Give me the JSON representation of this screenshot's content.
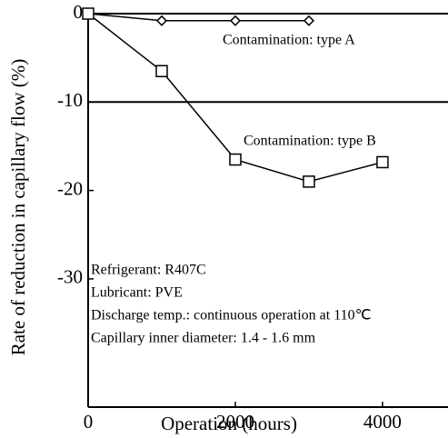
{
  "chart_data": {
    "type": "line",
    "x": [
      0,
      1000,
      2000,
      3000,
      4000
    ],
    "series": [
      {
        "name": "Contamination: type A",
        "color": "#000000",
        "marker": "diamond",
        "values": [
          0,
          -0.8,
          -0.8,
          -0.8,
          null
        ]
      },
      {
        "name": "Contamination: type B",
        "color": "#000000",
        "marker": "square",
        "values": [
          0,
          -6.5,
          -16.5,
          -19,
          -16.8
        ]
      }
    ],
    "xlabel": "Operation (hours)",
    "ylabel": "Rate of reduction in capillary flow (%)",
    "xlim": [
      0,
      4890
    ],
    "xticks": [
      0,
      2000,
      4000
    ],
    "ylim": [
      -44.5,
      0
    ],
    "yticks": [
      0,
      -10,
      -20,
      -30
    ],
    "hlines": [
      0,
      -10
    ],
    "annotations": [
      "Refrigerant: R407C",
      "Lubricant: PVE",
      "Discharge temp.: continuous operation at 110℃",
      "Capillary inner diameter: 1.4 - 1.6 mm"
    ]
  }
}
